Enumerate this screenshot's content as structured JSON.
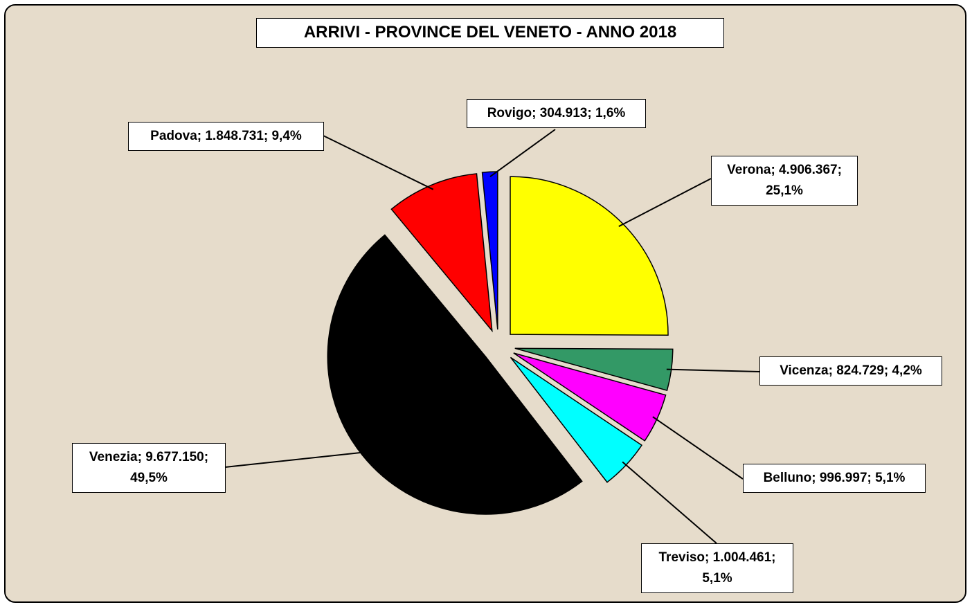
{
  "chart_data": {
    "type": "pie",
    "title": "ARRIVI - PROVINCE DEL VENETO - ANNO 2018",
    "values": [
      4906367,
      824729,
      996997,
      1004461,
      9677150,
      1848731,
      304913
    ],
    "value_labels": [
      "Verona; 4.906.367; 25,1%",
      "Vicenza; 824.729; 4,2%",
      "Belluno; 996.997; 5,1%",
      "Treviso; 1.004.461; 5,1%",
      "Venezia; 9.677.150; 49,5%",
      "Padova; 1.848.731; 9,4%",
      "Rovigo; 304.913; 1,6%"
    ],
    "colors": [
      "#ffff00",
      "#339966",
      "#ff00ff",
      "#00ffff",
      "#000000",
      "#ff0000",
      "#0000ff"
    ]
  }
}
